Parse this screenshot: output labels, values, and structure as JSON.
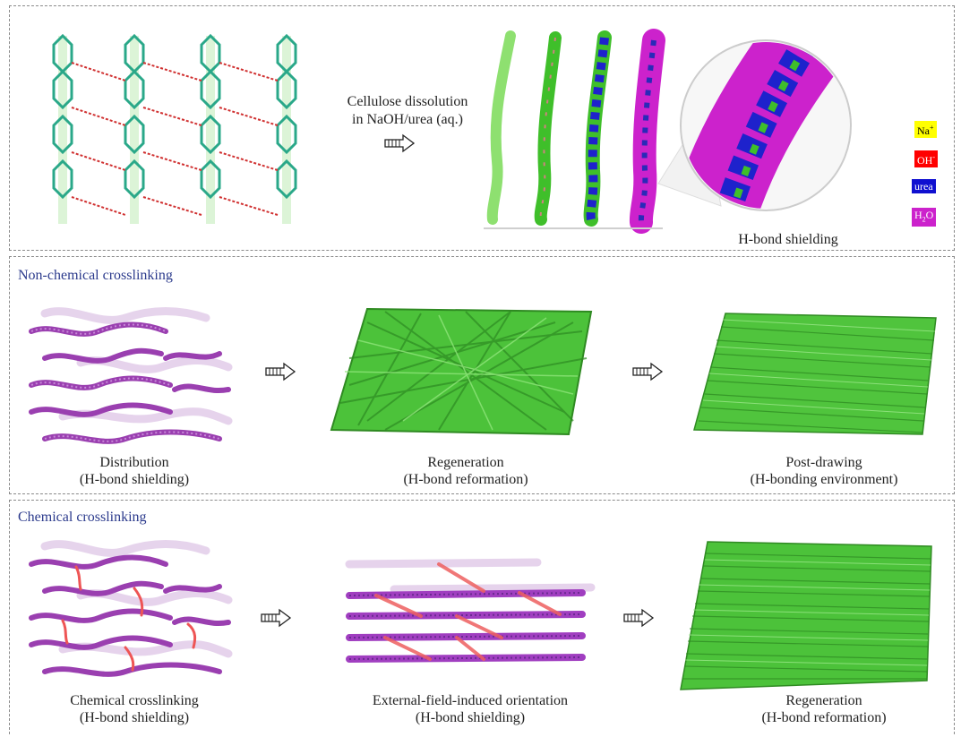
{
  "panel_top": {
    "dissolution_line1": "Cellulose dissolution",
    "dissolution_line2": "in NaOH/urea (aq.)",
    "zoom_caption": "H-bond shielding",
    "legend": [
      {
        "label": "Na",
        "sup": "+",
        "color": "#ffff00",
        "text_color": "#000000"
      },
      {
        "label": "OH",
        "sup": "-",
        "color": "#ff0000",
        "text_color": "#ffffff"
      },
      {
        "label": "urea",
        "sup": "",
        "color": "#1010d0",
        "text_color": "#ffffff"
      },
      {
        "label": "H",
        "sub": "2",
        "label2": "O",
        "color": "#cc22cc",
        "text_color": "#ffffff"
      }
    ]
  },
  "panel_middle": {
    "title": "Non-chemical crosslinking",
    "step1_line1": "Distribution",
    "step1_line2": "(H-bond shielding)",
    "step2_line1": "Regeneration",
    "step2_line2": "(H-bond reformation)",
    "step3_line1": "Post-drawing",
    "step3_line2": "(H-bonding environment)"
  },
  "panel_bottom": {
    "title": "Chemical crosslinking",
    "step1_line1": "Chemical crosslinking",
    "step1_line2": "(H-bond shielding)",
    "step2_line1": "External-field-induced orientation",
    "step2_line2": "(H-bond shielding)",
    "step3_line1": "Regeneration",
    "step3_line2": "(H-bond reformation)"
  },
  "colors": {
    "cellulose_green": "#3fbf2a",
    "chain_purple": "#9a3fb0",
    "crosslink_red": "#ee5555",
    "title_blue": "#2b3a8c"
  }
}
